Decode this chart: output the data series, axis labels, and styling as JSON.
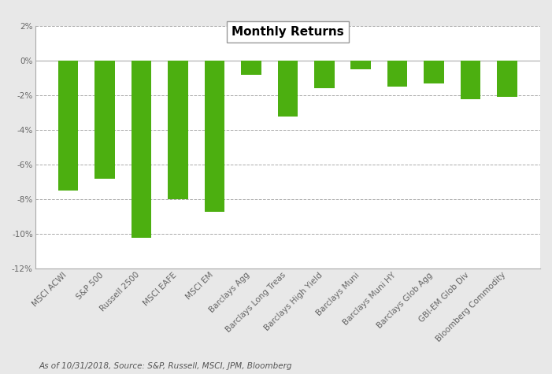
{
  "title": "Monthly Returns",
  "categories": [
    "MSCI ACWI",
    "S&P 500",
    "Russell 2500",
    "MSCI EAFE",
    "MSCI EM",
    "Barclays Agg",
    "Barclays Long Treas",
    "Barclays High Yield",
    "Barclays Muni",
    "Barclays Muni HY",
    "Barclays Glob Agg",
    "GBI-EM Glob Div",
    "Bloomberg Commodity"
  ],
  "values": [
    -7.5,
    -6.8,
    -10.2,
    -8.0,
    -8.7,
    -0.8,
    -3.2,
    -1.6,
    -0.5,
    -1.5,
    -1.3,
    -2.2,
    -2.1
  ],
  "bar_color": "#4caf10",
  "ylim": [
    -12,
    2
  ],
  "yticks": [
    2,
    0,
    -2,
    -4,
    -6,
    -8,
    -10,
    -12
  ],
  "background_color": "#e8e8e8",
  "plot_bg_color": "#ffffff",
  "grid_color": "#aaaaaa",
  "title_fontsize": 11,
  "tick_fontsize": 7.5,
  "footer_text": "As of 10/31/2018, Source: S&P, Russell, MSCI, JPM, Bloomberg"
}
